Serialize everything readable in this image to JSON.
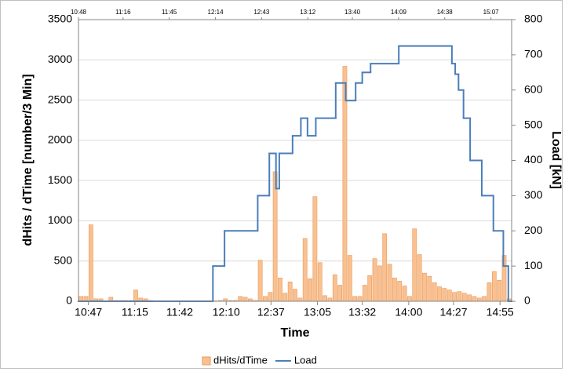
{
  "chart_data": {
    "type": "combo",
    "xlabel": "Time",
    "ylabel": "dHits / dTime [number/3 Min]",
    "y2label": "Load [kN]",
    "grid": true,
    "legend": "bottom",
    "xlim": [
      641,
      902
    ],
    "xticks": [
      {
        "value": 647,
        "label": "10:47"
      },
      {
        "value": 675,
        "label": "11:15"
      },
      {
        "value": 702,
        "label": "11:42"
      },
      {
        "value": 730,
        "label": "12:10"
      },
      {
        "value": 757,
        "label": "12:37"
      },
      {
        "value": 785,
        "label": "13:05"
      },
      {
        "value": 812,
        "label": "13:32"
      },
      {
        "value": 840,
        "label": "14:00"
      },
      {
        "value": 867,
        "label": "14:27"
      },
      {
        "value": 895,
        "label": "14:55"
      }
    ],
    "x2lim": [
      648,
      920
    ],
    "x2ticks": [
      {
        "value": 648,
        "label": "10:48"
      },
      {
        "value": 676,
        "label": "11:16"
      },
      {
        "value": 705,
        "label": "11:45"
      },
      {
        "value": 734,
        "label": "12:14"
      },
      {
        "value": 763,
        "label": "12:43"
      },
      {
        "value": 792,
        "label": "13:12"
      },
      {
        "value": 820,
        "label": "13:40"
      },
      {
        "value": 849,
        "label": "14:09"
      },
      {
        "value": 878,
        "label": "14:38"
      },
      {
        "value": 907,
        "label": "15:07"
      }
    ],
    "ylim": [
      0,
      3500
    ],
    "yticks": [
      0,
      500,
      1000,
      1500,
      2000,
      2500,
      3000,
      3500
    ],
    "y2lim": [
      0,
      800
    ],
    "y2ticks": [
      0,
      100,
      200,
      300,
      400,
      500,
      600,
      700,
      800
    ],
    "series": [
      {
        "name": "dHits/dTime",
        "type": "histogram",
        "color": "#fac090",
        "bins": [
          641,
          644,
          647,
          650,
          653,
          656,
          659,
          662,
          665,
          668,
          671,
          674,
          677,
          680,
          683,
          686,
          689,
          692,
          695,
          698,
          701,
          704,
          707,
          710,
          713,
          716,
          719,
          722,
          725,
          728,
          731,
          734,
          737,
          740,
          743,
          746,
          749,
          752,
          755,
          758,
          761,
          764,
          767,
          770,
          773,
          776,
          779,
          782,
          785,
          788,
          791,
          794,
          797,
          800,
          803,
          806,
          809,
          812,
          815,
          818,
          821,
          824,
          827,
          830,
          833,
          836,
          839,
          842,
          845,
          848,
          851,
          854,
          857,
          860,
          863,
          866,
          869,
          872,
          875,
          878,
          881,
          884,
          887,
          890,
          893,
          896,
          899,
          902
        ],
        "values": [
          60,
          60,
          950,
          30,
          30,
          0,
          50,
          10,
          10,
          10,
          10,
          140,
          40,
          30,
          10,
          0,
          5,
          5,
          5,
          5,
          5,
          5,
          5,
          5,
          5,
          5,
          5,
          5,
          10,
          30,
          10,
          10,
          60,
          50,
          30,
          10,
          510,
          60,
          110,
          1610,
          290,
          100,
          240,
          150,
          40,
          780,
          280,
          1300,
          480,
          70,
          40,
          330,
          200,
          2920,
          570,
          60,
          60,
          200,
          320,
          530,
          440,
          840,
          460,
          290,
          250,
          190,
          60,
          900,
          580,
          350,
          310,
          230,
          180,
          160,
          140,
          110,
          120,
          100,
          80,
          60,
          40,
          60,
          230,
          370,
          260,
          570,
          30
        ]
      },
      {
        "name": "Load",
        "type": "line",
        "step": true,
        "axis": "y2",
        "color": "#4a7ebb",
        "x": [
          641,
          722,
          729,
          749,
          756,
          760,
          762,
          770,
          775,
          779,
          784,
          796,
          802,
          808,
          812,
          817,
          834,
          866,
          868,
          870,
          873,
          877,
          884,
          891,
          897,
          900,
          902
        ],
        "values": [
          0,
          100,
          200,
          300,
          420,
          320,
          420,
          470,
          520,
          470,
          520,
          620,
          570,
          620,
          650,
          675,
          725,
          675,
          645,
          600,
          520,
          400,
          300,
          200,
          100,
          0,
          0
        ]
      }
    ]
  }
}
